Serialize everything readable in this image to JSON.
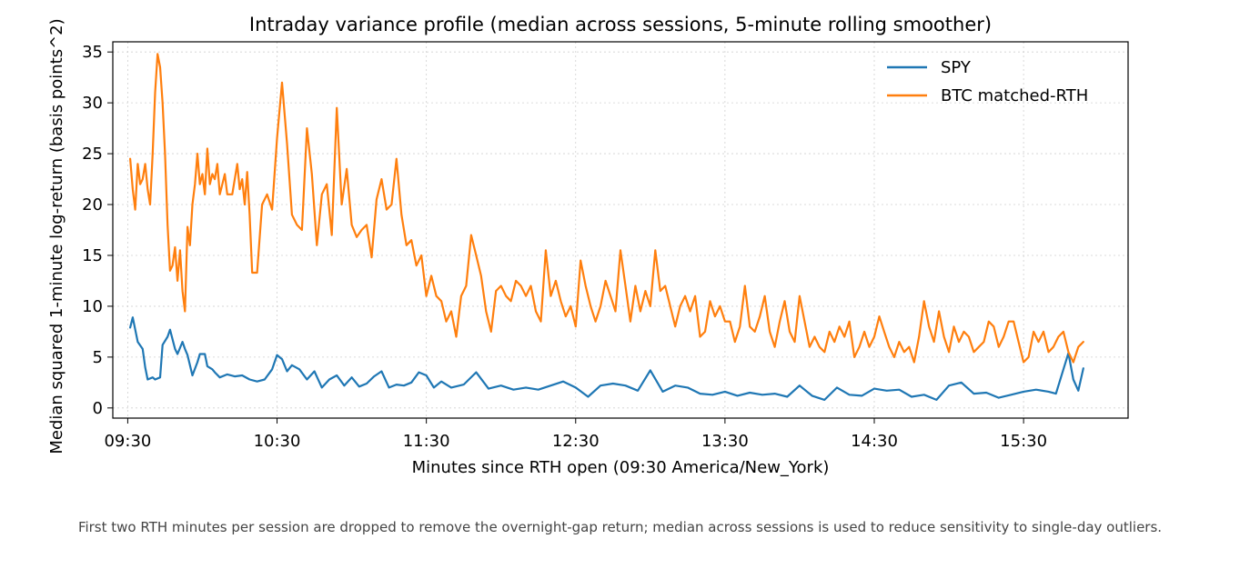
{
  "chart_data": {
    "type": "line",
    "title": "Intraday variance profile (median across sessions, 5-minute rolling smoother)",
    "xlabel": "Minutes since RTH open (09:30 America/New_York)",
    "ylabel": "Median squared 1-minute log-return (basis points^2)",
    "xlim": [
      "09:24",
      "16:12"
    ],
    "ylim": [
      -1,
      36
    ],
    "x_ticks": [
      "09:30",
      "10:30",
      "11:30",
      "12:30",
      "13:30",
      "14:30",
      "15:30"
    ],
    "y_ticks": [
      0,
      5,
      10,
      15,
      20,
      25,
      30,
      35
    ],
    "grid": true,
    "legend_position": "top-right",
    "series": [
      {
        "name": "SPY",
        "color": "#1f77b4",
        "x": [
          "09:31",
          "09:32",
          "09:34",
          "09:36",
          "09:37",
          "09:38",
          "09:40",
          "09:41",
          "09:43",
          "09:44",
          "09:46",
          "09:47",
          "09:49",
          "09:50",
          "09:52",
          "09:53",
          "09:54",
          "09:56",
          "09:58",
          "09:59",
          "10:01",
          "10:02",
          "10:04",
          "10:05",
          "10:07",
          "10:10",
          "10:13",
          "10:16",
          "10:19",
          "10:22",
          "10:25",
          "10:28",
          "10:30",
          "10:32",
          "10:34",
          "10:36",
          "10:39",
          "10:42",
          "10:45",
          "10:48",
          "10:51",
          "10:54",
          "10:57",
          "11:00",
          "11:03",
          "11:06",
          "11:09",
          "11:12",
          "11:15",
          "11:18",
          "11:21",
          "11:24",
          "11:27",
          "11:30",
          "11:33",
          "11:36",
          "11:40",
          "11:45",
          "11:50",
          "11:55",
          "12:00",
          "12:05",
          "12:10",
          "12:15",
          "12:20",
          "12:25",
          "12:30",
          "12:35",
          "12:40",
          "12:45",
          "12:50",
          "12:55",
          "13:00",
          "13:05",
          "13:10",
          "13:15",
          "13:20",
          "13:25",
          "13:30",
          "13:35",
          "13:40",
          "13:45",
          "13:50",
          "13:55",
          "14:00",
          "14:05",
          "14:10",
          "14:15",
          "14:20",
          "14:25",
          "14:30",
          "14:35",
          "14:40",
          "14:45",
          "14:50",
          "14:55",
          "15:00",
          "15:05",
          "15:10",
          "15:15",
          "15:20",
          "15:25",
          "15:30",
          "15:35",
          "15:40",
          "15:43",
          "15:46",
          "15:48",
          "15:50",
          "15:52",
          "15:54"
        ],
        "values": [
          7.9,
          8.9,
          6.5,
          5.8,
          4.0,
          2.8,
          3.0,
          2.8,
          3.0,
          6.2,
          7.0,
          7.7,
          5.8,
          5.3,
          6.5,
          5.8,
          5.2,
          3.2,
          4.5,
          5.3,
          5.3,
          4.1,
          3.8,
          3.5,
          3.0,
          3.3,
          3.1,
          3.2,
          2.8,
          2.6,
          2.8,
          3.8,
          5.2,
          4.8,
          3.6,
          4.2,
          3.8,
          2.8,
          3.6,
          2.0,
          2.8,
          3.2,
          2.2,
          3.0,
          2.1,
          2.4,
          3.1,
          3.6,
          2.0,
          2.3,
          2.2,
          2.5,
          3.5,
          3.2,
          2.0,
          2.6,
          2.0,
          2.3,
          3.5,
          1.9,
          2.2,
          1.8,
          2.0,
          1.8,
          2.2,
          2.6,
          2.0,
          1.1,
          2.2,
          2.4,
          2.2,
          1.7,
          3.7,
          1.6,
          2.2,
          2.0,
          1.4,
          1.3,
          1.6,
          1.2,
          1.5,
          1.3,
          1.4,
          1.1,
          2.2,
          1.2,
          0.8,
          2.0,
          1.3,
          1.2,
          1.9,
          1.7,
          1.8,
          1.1,
          1.3,
          0.8,
          2.2,
          2.5,
          1.4,
          1.5,
          1.0,
          1.3,
          1.6,
          1.8,
          1.6,
          1.4,
          3.8,
          5.4,
          2.8,
          1.7,
          3.9
        ]
      },
      {
        "name": "BTC matched-RTH",
        "color": "#ff7f0e",
        "x": [
          "09:31",
          "09:32",
          "09:33",
          "09:34",
          "09:35",
          "09:36",
          "09:37",
          "09:38",
          "09:39",
          "09:40",
          "09:41",
          "09:42",
          "09:43",
          "09:44",
          "09:45",
          "09:46",
          "09:47",
          "09:48",
          "09:49",
          "09:50",
          "09:51",
          "09:52",
          "09:53",
          "09:54",
          "09:55",
          "09:56",
          "09:57",
          "09:58",
          "09:59",
          "10:00",
          "10:01",
          "10:02",
          "10:03",
          "10:04",
          "10:05",
          "10:06",
          "10:07",
          "10:08",
          "10:09",
          "10:10",
          "10:12",
          "10:14",
          "10:15",
          "10:16",
          "10:17",
          "10:18",
          "10:19",
          "10:20",
          "10:22",
          "10:24",
          "10:26",
          "10:28",
          "10:30",
          "10:32",
          "10:34",
          "10:36",
          "10:38",
          "10:40",
          "10:42",
          "10:44",
          "10:46",
          "10:48",
          "10:50",
          "10:52",
          "10:54",
          "10:56",
          "10:58",
          "11:00",
          "11:02",
          "11:04",
          "11:06",
          "11:08",
          "11:10",
          "11:12",
          "11:14",
          "11:16",
          "11:18",
          "11:20",
          "11:22",
          "11:24",
          "11:26",
          "11:28",
          "11:30",
          "11:32",
          "11:34",
          "11:36",
          "11:38",
          "11:40",
          "11:42",
          "11:44",
          "11:46",
          "11:48",
          "11:50",
          "11:52",
          "11:54",
          "11:56",
          "11:58",
          "12:00",
          "12:02",
          "12:04",
          "12:06",
          "12:08",
          "12:10",
          "12:12",
          "12:14",
          "12:16",
          "12:18",
          "12:20",
          "12:22",
          "12:24",
          "12:26",
          "12:28",
          "12:30",
          "12:32",
          "12:34",
          "12:36",
          "12:38",
          "12:40",
          "12:42",
          "12:44",
          "12:46",
          "12:48",
          "12:50",
          "12:52",
          "12:54",
          "12:56",
          "12:58",
          "13:00",
          "13:02",
          "13:04",
          "13:06",
          "13:08",
          "13:10",
          "13:12",
          "13:14",
          "13:16",
          "13:18",
          "13:20",
          "13:22",
          "13:24",
          "13:26",
          "13:28",
          "13:30",
          "13:32",
          "13:34",
          "13:36",
          "13:38",
          "13:40",
          "13:42",
          "13:44",
          "13:46",
          "13:48",
          "13:50",
          "13:52",
          "13:54",
          "13:56",
          "13:58",
          "14:00",
          "14:02",
          "14:04",
          "14:06",
          "14:08",
          "14:10",
          "14:12",
          "14:14",
          "14:16",
          "14:18",
          "14:20",
          "14:22",
          "14:24",
          "14:26",
          "14:28",
          "14:30",
          "14:32",
          "14:34",
          "14:36",
          "14:38",
          "14:40",
          "14:42",
          "14:44",
          "14:46",
          "14:48",
          "14:50",
          "14:52",
          "14:54",
          "14:56",
          "14:58",
          "15:00",
          "15:02",
          "15:04",
          "15:06",
          "15:08",
          "15:10",
          "15:12",
          "15:14",
          "15:16",
          "15:18",
          "15:20",
          "15:22",
          "15:24",
          "15:26",
          "15:28",
          "15:30",
          "15:32",
          "15:34",
          "15:36",
          "15:38",
          "15:40",
          "15:42",
          "15:44",
          "15:46",
          "15:48",
          "15:50",
          "15:52",
          "15:54"
        ],
        "values": [
          24.5,
          21.5,
          19.5,
          24.0,
          22.0,
          22.5,
          24.0,
          21.5,
          20.0,
          25.0,
          31.0,
          34.8,
          33.5,
          30.0,
          25.0,
          18.0,
          13.5,
          14.0,
          15.8,
          12.5,
          15.5,
          11.5,
          9.5,
          17.8,
          16.0,
          20.0,
          22.0,
          25.0,
          22.0,
          23.0,
          21.0,
          25.5,
          22.0,
          23.0,
          22.5,
          24.0,
          21.0,
          22.0,
          23.0,
          21.0,
          21.0,
          24.0,
          21.5,
          22.5,
          20.0,
          23.2,
          19.0,
          13.3,
          13.3,
          20.0,
          21.0,
          19.5,
          26.5,
          32.0,
          26.0,
          19.0,
          18.0,
          17.5,
          27.5,
          23.0,
          16.0,
          21.0,
          22.0,
          17.0,
          29.5,
          20.0,
          23.5,
          18.0,
          16.8,
          17.5,
          18.0,
          14.8,
          20.5,
          22.5,
          19.5,
          20.0,
          24.5,
          19.0,
          16.0,
          16.5,
          14.0,
          15.0,
          11.0,
          13.0,
          11.0,
          10.5,
          8.5,
          9.5,
          7.0,
          11.0,
          12.0,
          17.0,
          15.0,
          13.0,
          9.5,
          7.5,
          11.5,
          12.0,
          11.0,
          10.5,
          12.5,
          12.0,
          11.0,
          12.0,
          9.5,
          8.5,
          15.5,
          11.0,
          12.5,
          10.5,
          9.0,
          10.0,
          8.0,
          14.5,
          12.0,
          10.0,
          8.5,
          10.0,
          12.5,
          11.0,
          9.5,
          15.5,
          12.0,
          8.5,
          12.0,
          9.5,
          11.5,
          10.0,
          15.5,
          11.5,
          12.0,
          10.0,
          8.0,
          10.0,
          11.0,
          9.5,
          11.0,
          7.0,
          7.5,
          10.5,
          9.0,
          10.0,
          8.5,
          8.5,
          6.5,
          8.0,
          12.0,
          8.0,
          7.5,
          9.0,
          11.0,
          7.5,
          6.0,
          8.5,
          10.5,
          7.5,
          6.5,
          11.0,
          8.5,
          6.0,
          7.0,
          6.0,
          5.5,
          7.5,
          6.5,
          8.0,
          7.0,
          8.5,
          5.0,
          6.0,
          7.5,
          6.0,
          7.0,
          9.0,
          7.5,
          6.0,
          5.0,
          6.5,
          5.5,
          6.0,
          4.5,
          7.0,
          10.5,
          8.0,
          6.5,
          9.5,
          7.0,
          5.5,
          8.0,
          6.5,
          7.5,
          7.0,
          5.5,
          6.0,
          6.5,
          8.5,
          8.0,
          6.0,
          7.0,
          8.5,
          8.5,
          6.5,
          4.5,
          5.0,
          7.5,
          6.5,
          7.5,
          5.5,
          6.0,
          7.0,
          7.5,
          5.5,
          4.5,
          6.0,
          6.5
        ]
      }
    ]
  },
  "caption": "First two RTH minutes per session are dropped to remove the overnight-gap return; median across sessions is used to reduce sensitivity to single-day outliers."
}
